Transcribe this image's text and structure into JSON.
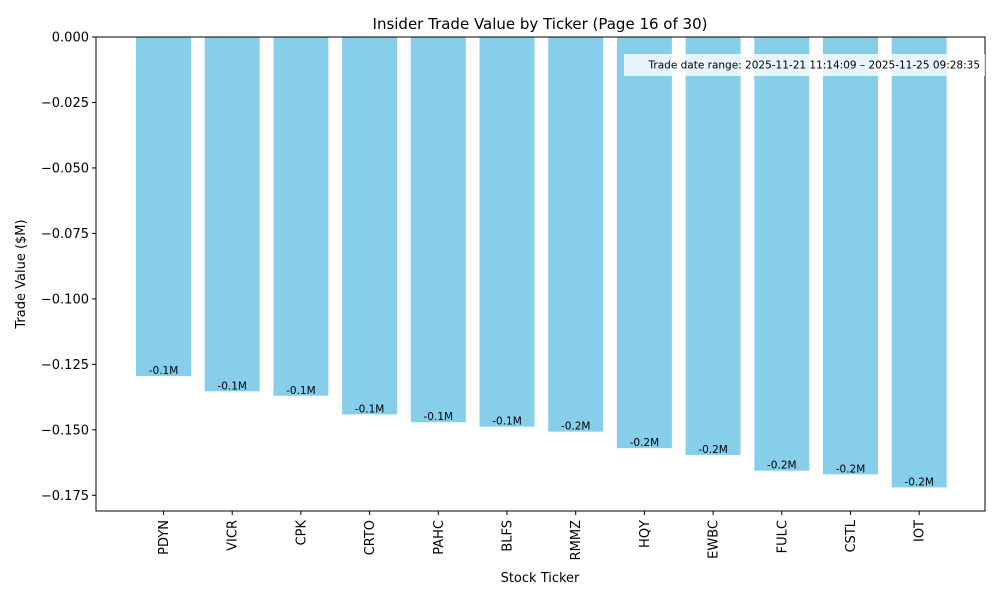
{
  "chart_data": {
    "type": "bar",
    "title": "Insider Trade Value by Ticker (Page 16 of 30)",
    "xlabel": "Stock Ticker",
    "ylabel": "Trade Value ($M)",
    "categories": [
      "PDYN",
      "VICR",
      "CPK",
      "CRTO",
      "PAHC",
      "BLFS",
      "RMMZ",
      "HQY",
      "EWBC",
      "FULC",
      "CSTL",
      "IOT"
    ],
    "values": [
      -0.1295,
      -0.1353,
      -0.137,
      -0.1441,
      -0.1471,
      -0.1488,
      -0.1507,
      -0.157,
      -0.1596,
      -0.1656,
      -0.167,
      -0.172
    ],
    "data_labels": [
      "-0.1M",
      "-0.1M",
      "-0.1M",
      "-0.1M",
      "-0.1M",
      "-0.1M",
      "-0.2M",
      "-0.2M",
      "-0.2M",
      "-0.2M",
      "-0.2M",
      "-0.2M"
    ],
    "ylim": [
      -0.181,
      0.0
    ],
    "yticks": [
      0.0,
      -0.025,
      -0.05,
      -0.075,
      -0.1,
      -0.125,
      -0.15,
      -0.175
    ],
    "ytick_labels": [
      "0.000",
      "−0.025",
      "−0.050",
      "−0.075",
      "−0.100",
      "−0.125",
      "−0.150",
      "−0.175"
    ],
    "bar_color": "#87CEEB",
    "grid": false,
    "annotation": "Trade date range: 2025-11-21 11:14:09 – 2025-11-25 09:28:35",
    "annotation_position": "top-right"
  }
}
